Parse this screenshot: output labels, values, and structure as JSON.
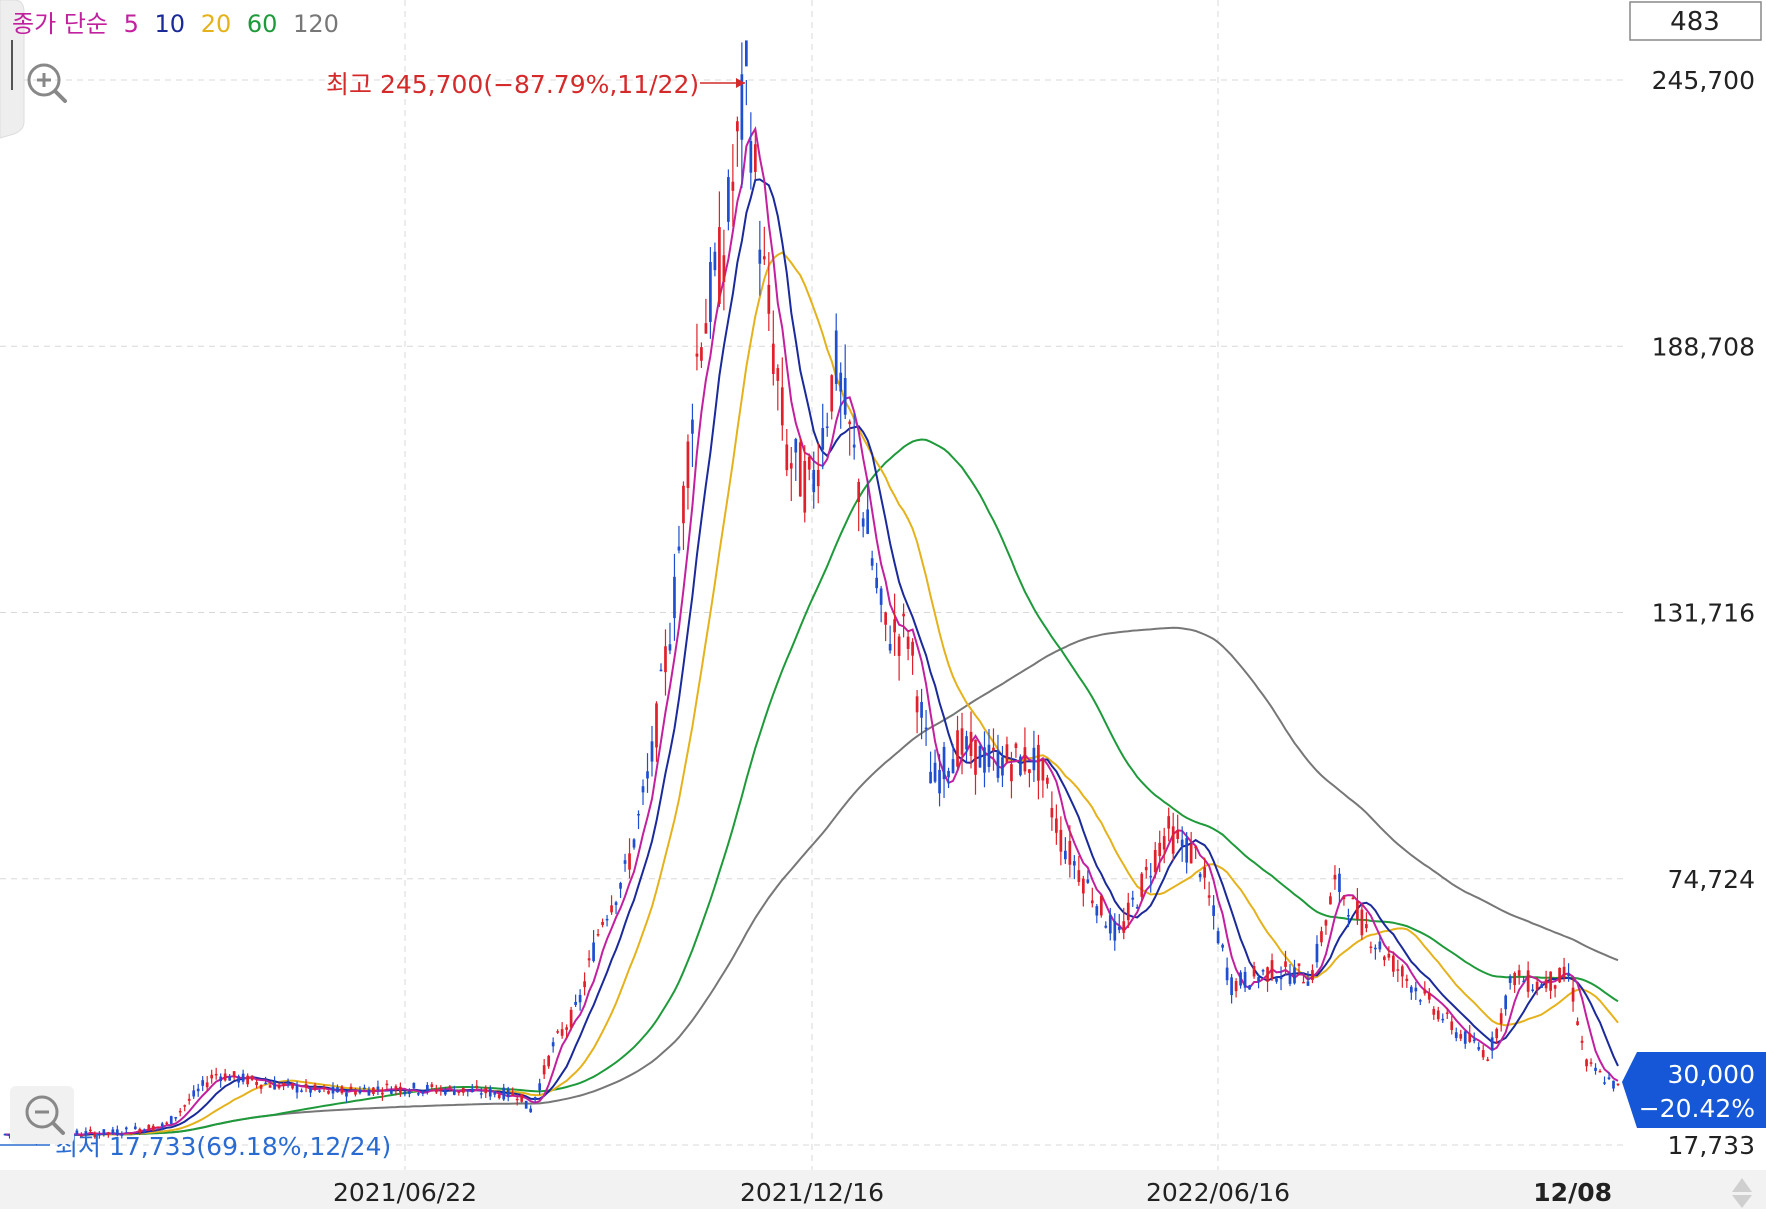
{
  "colors": {
    "up": "#e0202a",
    "down": "#1f4fd1",
    "ma5": "#c2209f",
    "ma10": "#1a2a9a",
    "ma20": "#e5b21c",
    "ma60": "#1e9a3a",
    "ma120": "#777777",
    "badge": "#1557d6",
    "max_label": "#d42a2a",
    "min_label": "#2a6bd1"
  },
  "legend": {
    "prefix": "종가 단순",
    "items": [
      {
        "label": "5",
        "color": "#c2209f"
      },
      {
        "label": "10",
        "color": "#1a2a9a"
      },
      {
        "label": "20",
        "color": "#e5b21c"
      },
      {
        "label": "60",
        "color": "#1e9a3a"
      },
      {
        "label": "120",
        "color": "#777777"
      }
    ]
  },
  "top_box_value": "483",
  "max_label": "최고 245,700(−87.79%,11/22)",
  "min_label": "최저 17,733(69.18%,12/24)",
  "current_price": "30,000",
  "current_change": "−20.42%",
  "icons": {
    "zoom_in": "zoom-in-icon",
    "zoom_out": "zoom-out-icon",
    "scroll": "up-down-arrows-icon"
  },
  "chart_data": {
    "type": "candlestick",
    "y_axis_labels": [
      "245,700",
      "188,708",
      "131,716",
      "74,724",
      "17,733"
    ],
    "ylim": [
      17733,
      245700
    ],
    "x_axis_labels": [
      "2021/06/22",
      "2021/12/16",
      "2022/06/16",
      "12/08"
    ],
    "grid": true,
    "moving_averages": [
      5,
      10,
      20,
      60,
      120
    ],
    "max": {
      "value": 245700,
      "change": "-87.79%",
      "date": "11/22"
    },
    "min": {
      "value": 17733,
      "change": "69.18%",
      "date": "12/24"
    },
    "last": {
      "value": 30000,
      "change": "-20.42%"
    },
    "close_path": [
      [
        0.0,
        20000
      ],
      [
        0.065,
        20300
      ],
      [
        0.1,
        22000
      ],
      [
        0.13,
        33000
      ],
      [
        0.16,
        31000
      ],
      [
        0.2,
        29000
      ],
      [
        0.24,
        30000
      ],
      [
        0.28,
        29500
      ],
      [
        0.32,
        28500
      ],
      [
        0.325,
        24500
      ],
      [
        0.34,
        39000
      ],
      [
        0.355,
        47000
      ],
      [
        0.37,
        66000
      ],
      [
        0.385,
        76000
      ],
      [
        0.4,
        98000
      ],
      [
        0.415,
        135000
      ],
      [
        0.43,
        190000
      ],
      [
        0.445,
        208000
      ],
      [
        0.46,
        245700
      ],
      [
        0.47,
        205000
      ],
      [
        0.485,
        165000
      ],
      [
        0.5,
        158000
      ],
      [
        0.515,
        185000
      ],
      [
        0.53,
        158000
      ],
      [
        0.545,
        128000
      ],
      [
        0.56,
        127000
      ],
      [
        0.575,
        95000
      ],
      [
        0.59,
        103000
      ],
      [
        0.61,
        100000
      ],
      [
        0.64,
        100000
      ],
      [
        0.655,
        83000
      ],
      [
        0.67,
        74000
      ],
      [
        0.69,
        62000
      ],
      [
        0.72,
        85000
      ],
      [
        0.74,
        79000
      ],
      [
        0.76,
        52000
      ],
      [
        0.785,
        55000
      ],
      [
        0.81,
        54000
      ],
      [
        0.825,
        74000
      ],
      [
        0.85,
        61000
      ],
      [
        0.87,
        53000
      ],
      [
        0.9,
        42000
      ],
      [
        0.92,
        37000
      ],
      [
        0.935,
        54000
      ],
      [
        0.95,
        52000
      ],
      [
        0.97,
        54000
      ],
      [
        0.98,
        35000
      ],
      [
        1.0,
        30000
      ]
    ]
  }
}
